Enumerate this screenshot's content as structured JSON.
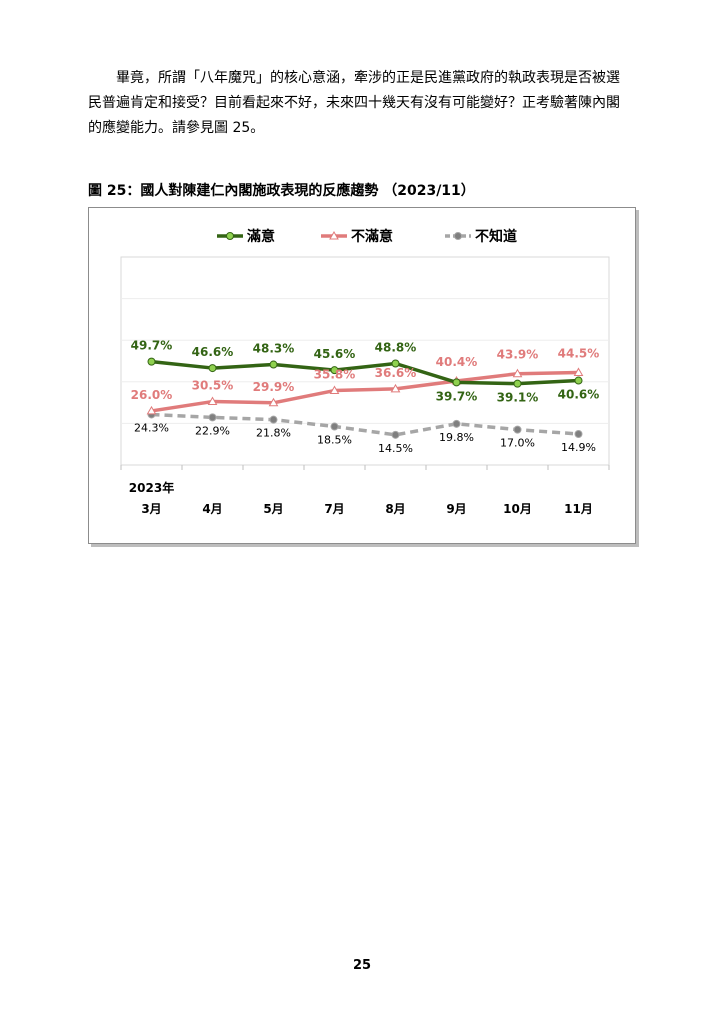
{
  "body_text": {
    "line1": "　　畢竟，所謂「八年魔咒」的核心意涵，牽涉的正是民進黨政府的執政表現是否被選",
    "line2": "民普遍肯定和接受？目前看起來不好，未來四十幾天有沒有可能變好？正考驗著陳內閣",
    "line3": "的應變能力。請參見圖 25。"
  },
  "figure_caption": "圖 25：國人對陳建仁內閣施政表現的反應趨勢 （2023/11）",
  "page_number": "25",
  "chart_data": {
    "type": "line",
    "title": "",
    "year_label": "2023年",
    "categories": [
      "3月",
      "4月",
      "5月",
      "7月",
      "8月",
      "9月",
      "10月",
      "11月"
    ],
    "ylim": [
      0,
      100
    ],
    "grid": true,
    "legend_position": "top",
    "series": [
      {
        "name": "滿意",
        "color": "#336414",
        "marker_color": "#8fd14f",
        "dashed": false,
        "bold_labels": true,
        "values": [
          49.7,
          46.6,
          48.3,
          45.6,
          48.8,
          39.7,
          39.1,
          40.6
        ],
        "labels": [
          "49.7%",
          "46.6%",
          "48.3%",
          "45.6%",
          "48.8%",
          "39.7%",
          "39.1%",
          "40.6%"
        ]
      },
      {
        "name": "不滿意",
        "color": "#e07b7b",
        "marker_color": "#ffffff",
        "dashed": false,
        "bold_labels": true,
        "values": [
          26.0,
          30.5,
          29.9,
          35.8,
          36.6,
          40.4,
          43.9,
          44.5
        ],
        "labels": [
          "26.0%",
          "30.5%",
          "29.9%",
          "35.8%",
          "36.6%",
          "40.4%",
          "43.9%",
          "44.5%"
        ]
      },
      {
        "name": "不知道",
        "color": "#a6a6a6",
        "marker_color": "#7f7f7f",
        "dashed": true,
        "bold_labels": false,
        "values": [
          24.3,
          22.9,
          21.8,
          18.5,
          14.5,
          19.8,
          17.0,
          14.9
        ],
        "labels": [
          "24.3%",
          "22.9%",
          "21.8%",
          "18.5%",
          "14.5%",
          "19.8%",
          "17.0%",
          "14.9%"
        ]
      }
    ]
  }
}
